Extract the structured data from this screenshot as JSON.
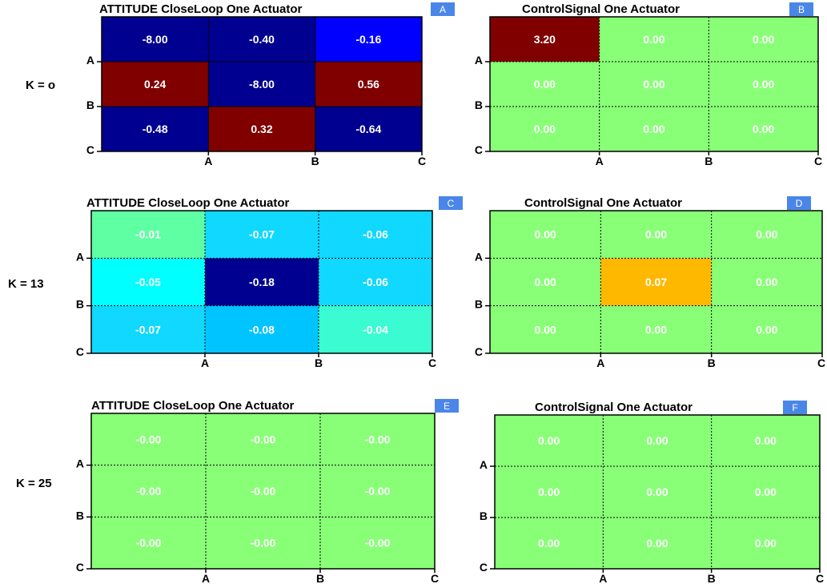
{
  "row_labels": [
    "K = o",
    "K = 13",
    "K = 25"
  ],
  "colors": {
    "navy": "#000090",
    "blue": "#0000ff",
    "dark_red": "#800000",
    "aqua_green": "#5fffa3",
    "cyan": "#00ffff",
    "sky": "#10d8ff",
    "deep_sky": "#00c4ff",
    "turquoise": "#3afbd2",
    "light_green": "#88ff77",
    "orange": "#ffb800",
    "badge": "#4a86e8"
  },
  "chart_data": [
    {
      "type": "heatmap",
      "panel": "A",
      "title": "ATTITUDE CloseLoop One Actuator",
      "row_labels": [
        "A",
        "B",
        "C"
      ],
      "col_labels": [
        "A",
        "B",
        "C"
      ],
      "values": [
        [
          "-8.00",
          "-0.40",
          "-0.16"
        ],
        [
          "0.24",
          "-8.00",
          "0.56"
        ],
        [
          "-0.48",
          "0.32",
          "-0.64"
        ]
      ],
      "cell_colors": [
        [
          "navy",
          "navy",
          "blue"
        ],
        [
          "dark_red",
          "navy",
          "dark_red"
        ],
        [
          "navy",
          "dark_red",
          "navy"
        ]
      ],
      "grid": "solid"
    },
    {
      "type": "heatmap",
      "panel": "B",
      "title": "ControlSignal One Actuator",
      "row_labels": [
        "A",
        "B",
        "C"
      ],
      "col_labels": [
        "A",
        "B",
        "C"
      ],
      "values": [
        [
          "3.20",
          "0.00",
          "0.00"
        ],
        [
          "0.00",
          "0.00",
          "0.00"
        ],
        [
          "0.00",
          "0.00",
          "0.00"
        ]
      ],
      "cell_colors": [
        [
          "dark_red",
          "light_green",
          "light_green"
        ],
        [
          "light_green",
          "light_green",
          "light_green"
        ],
        [
          "light_green",
          "light_green",
          "light_green"
        ]
      ],
      "grid": "dotted"
    },
    {
      "type": "heatmap",
      "panel": "C",
      "title": "ATTITUDE CloseLoop One Actuator",
      "row_labels": [
        "A",
        "B",
        "C"
      ],
      "col_labels": [
        "A",
        "B",
        "C"
      ],
      "values": [
        [
          "-0.01",
          "-0.07",
          "-0.06"
        ],
        [
          "-0.05",
          "-0.18",
          "-0.06"
        ],
        [
          "-0.07",
          "-0.08",
          "-0.04"
        ]
      ],
      "cell_colors": [
        [
          "aqua_green",
          "sky",
          "sky"
        ],
        [
          "cyan",
          "navy",
          "sky"
        ],
        [
          "sky",
          "deep_sky",
          "turquoise"
        ]
      ],
      "grid": "dotted"
    },
    {
      "type": "heatmap",
      "panel": "D",
      "title": "ControlSignal One Actuator",
      "row_labels": [
        "A",
        "B",
        "C"
      ],
      "col_labels": [
        "A",
        "B",
        "C"
      ],
      "values": [
        [
          "0.00",
          "0.00",
          "0.00"
        ],
        [
          "0.00",
          "0.07",
          "0.00"
        ],
        [
          "0.00",
          "0.00",
          "0.00"
        ]
      ],
      "cell_colors": [
        [
          "light_green",
          "light_green",
          "light_green"
        ],
        [
          "light_green",
          "orange",
          "light_green"
        ],
        [
          "light_green",
          "light_green",
          "light_green"
        ]
      ],
      "grid": "dotted"
    },
    {
      "type": "heatmap",
      "panel": "E",
      "title": "ATTITUDE CloseLoop One Actuator",
      "row_labels": [
        "A",
        "B",
        "C"
      ],
      "col_labels": [
        "A",
        "B",
        "C"
      ],
      "values": [
        [
          "-0.00",
          "-0.00",
          "-0.00"
        ],
        [
          "-0.00",
          "-0.00",
          "-0.00"
        ],
        [
          "-0.00",
          "-0.00",
          "-0.00"
        ]
      ],
      "cell_colors": [
        [
          "light_green",
          "light_green",
          "light_green"
        ],
        [
          "light_green",
          "light_green",
          "light_green"
        ],
        [
          "light_green",
          "light_green",
          "light_green"
        ]
      ],
      "grid": "dotted"
    },
    {
      "type": "heatmap",
      "panel": "F",
      "title": "ControlSignal One Actuator",
      "row_labels": [
        "A",
        "B",
        "C"
      ],
      "col_labels": [
        "A",
        "B",
        "C"
      ],
      "values": [
        [
          "0.00",
          "0.00",
          "0.00"
        ],
        [
          "0.00",
          "0.00",
          "0.00"
        ],
        [
          "0.00",
          "0.00",
          "0.00"
        ]
      ],
      "cell_colors": [
        [
          "light_green",
          "light_green",
          "light_green"
        ],
        [
          "light_green",
          "light_green",
          "light_green"
        ],
        [
          "light_green",
          "light_green",
          "light_green"
        ]
      ],
      "grid": "dotted"
    }
  ]
}
